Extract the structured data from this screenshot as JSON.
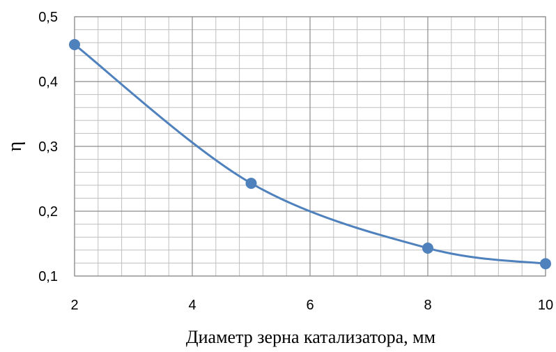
{
  "chart_data": {
    "type": "line",
    "xlabel": "Диаметр зерна катализатора, мм",
    "ylabel": "η",
    "xlim": [
      2,
      10
    ],
    "ylim": [
      0.1,
      0.5
    ],
    "x_ticks": [
      2,
      4,
      6,
      8,
      10
    ],
    "x_tick_labels": [
      "2",
      "4",
      "6",
      "8",
      "10"
    ],
    "y_ticks": [
      0.1,
      0.2,
      0.3,
      0.4,
      0.5
    ],
    "y_tick_labels": [
      "0,1",
      "0,2",
      "0,3",
      "0,4",
      "0,5"
    ],
    "grid": true,
    "legend": "none",
    "series": [
      {
        "x": [
          2,
          5,
          8,
          10
        ],
        "values": [
          0.457,
          0.243,
          0.143,
          0.119
        ],
        "color": "#4F81BD",
        "smooth": true,
        "markers": true
      }
    ]
  }
}
